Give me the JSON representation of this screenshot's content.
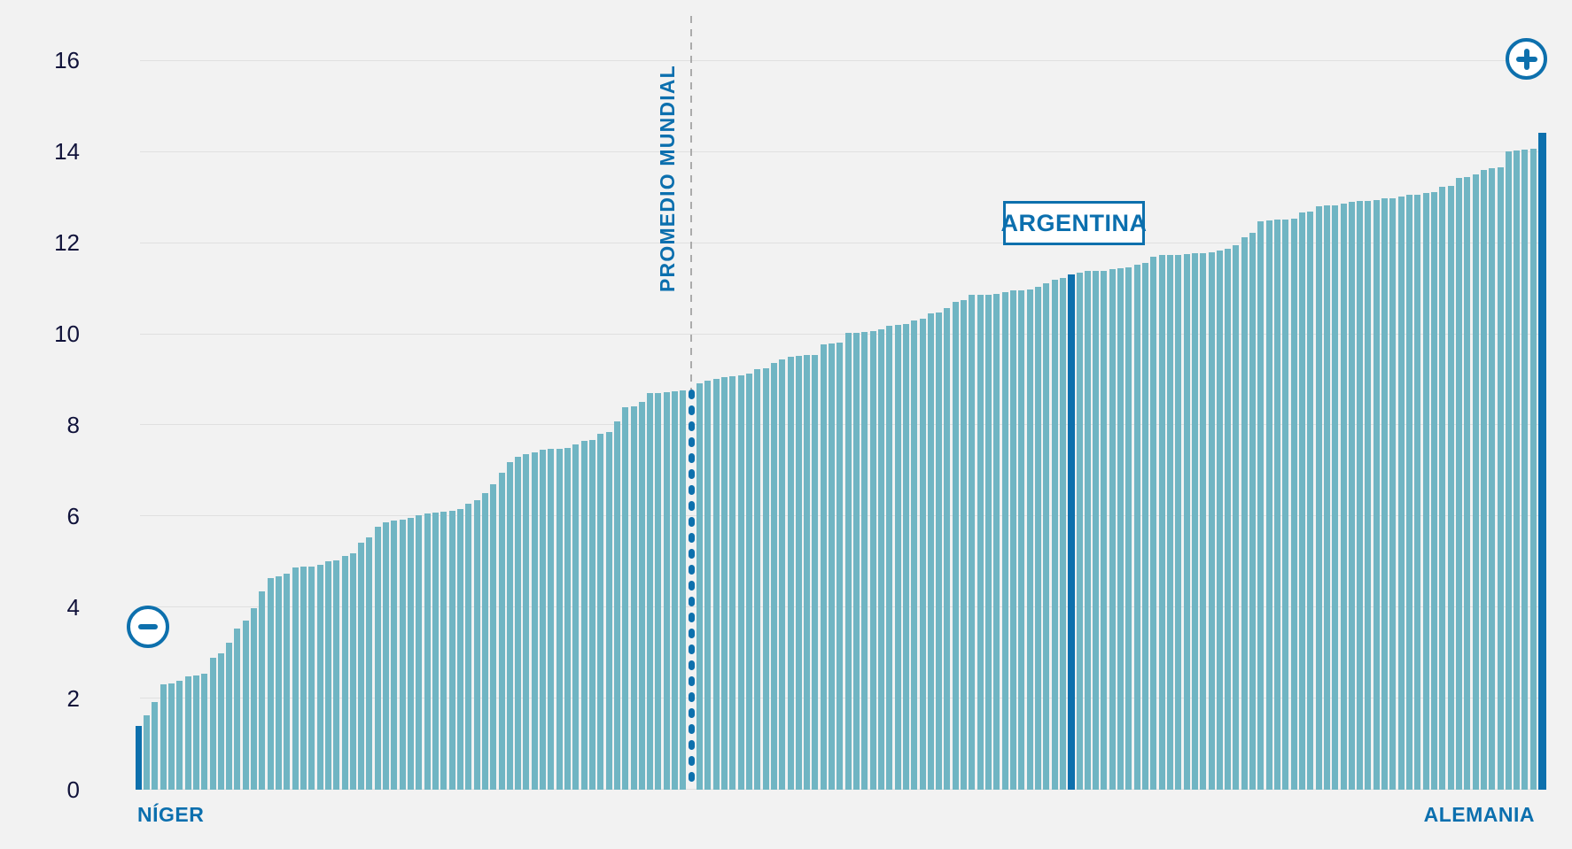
{
  "background_color": "#f2f2f2",
  "colors": {
    "bar_teal": "#70b5c3",
    "highlight_blue": "#0d70ad",
    "accent_text_blue": "#0b6fae",
    "axis_text_navy": "#10123a",
    "gridline": "#e0e0e0",
    "dashed_guide_gray": "#ababab",
    "box_background": "#ffffff"
  },
  "icons": {
    "minus": "minus-icon",
    "plus": "plus-icon"
  },
  "labels": {
    "promedio": "PROMEDIO MUNDIAL",
    "argentina": "ARGENTINA",
    "niger": "NÍGER",
    "alemania": "ALEMANIA"
  },
  "y_axis": {
    "ticks": [
      0,
      2,
      4,
      6,
      8,
      10,
      12,
      14,
      16
    ]
  },
  "chart_data": {
    "type": "bar",
    "title": "",
    "xlabel": "",
    "ylabel": "",
    "ylim": [
      0,
      16
    ],
    "grid": true,
    "legend": false,
    "n_bars": 171,
    "sorted": "ascending",
    "values": [
      1.4,
      1.63,
      1.92,
      2.3,
      2.33,
      2.38,
      2.49,
      2.51,
      2.53,
      2.88,
      2.98,
      3.21,
      3.53,
      3.71,
      3.98,
      4.34,
      4.63,
      4.67,
      4.73,
      4.88,
      4.89,
      4.9,
      4.92,
      5.0,
      5.03,
      5.13,
      5.19,
      5.41,
      5.54,
      5.76,
      5.87,
      5.9,
      5.92,
      5.95,
      6.02,
      6.05,
      6.08,
      6.1,
      6.12,
      6.15,
      6.27,
      6.35,
      6.5,
      6.7,
      6.95,
      7.19,
      7.3,
      7.35,
      7.4,
      7.45,
      7.48,
      7.48,
      7.49,
      7.58,
      7.64,
      7.66,
      7.8,
      7.85,
      8.08,
      8.39,
      8.4,
      8.5,
      8.69,
      8.7,
      8.72,
      8.74,
      8.76,
      8.78,
      8.92,
      8.98,
      9.0,
      9.05,
      9.07,
      9.08,
      9.13,
      9.23,
      9.24,
      9.36,
      9.44,
      9.5,
      9.52,
      9.53,
      9.53,
      9.76,
      9.78,
      9.8,
      10.02,
      10.02,
      10.04,
      10.06,
      10.1,
      10.17,
      10.2,
      10.21,
      10.3,
      10.33,
      10.45,
      10.46,
      10.56,
      10.7,
      10.74,
      10.85,
      10.86,
      10.86,
      10.88,
      10.91,
      10.95,
      10.96,
      10.98,
      11.03,
      11.1,
      11.18,
      11.22,
      11.3,
      11.35,
      11.37,
      11.38,
      11.38,
      11.42,
      11.44,
      11.46,
      11.51,
      11.55,
      11.7,
      11.72,
      11.72,
      11.72,
      11.74,
      11.76,
      11.77,
      11.79,
      11.83,
      11.87,
      11.94,
      12.11,
      12.22,
      12.47,
      12.48,
      12.5,
      12.51,
      12.53,
      12.67,
      12.69,
      12.79,
      12.81,
      12.82,
      12.85,
      12.89,
      12.91,
      12.92,
      12.93,
      12.97,
      12.98,
      13.02,
      13.05,
      13.06,
      13.08,
      13.11,
      13.23,
      13.24,
      13.41,
      13.44,
      13.5,
      13.6,
      13.63,
      13.66,
      14.0,
      14.02,
      14.04,
      14.06,
      14.42
    ],
    "average_marker": {
      "index": 67,
      "value": 8.78,
      "label": "PROMEDIO MUNDIAL",
      "style": "dotted-bar-with-dashed-guide"
    },
    "highlighted_bars": {
      "min": {
        "index": 0,
        "label": "NÍGER",
        "value": 1.4
      },
      "argentina": {
        "index": 113,
        "label": "ARGENTINA",
        "value": 11.3
      },
      "max": {
        "index": 170,
        "label": "ALEMANIA",
        "value": 14.42
      }
    }
  }
}
